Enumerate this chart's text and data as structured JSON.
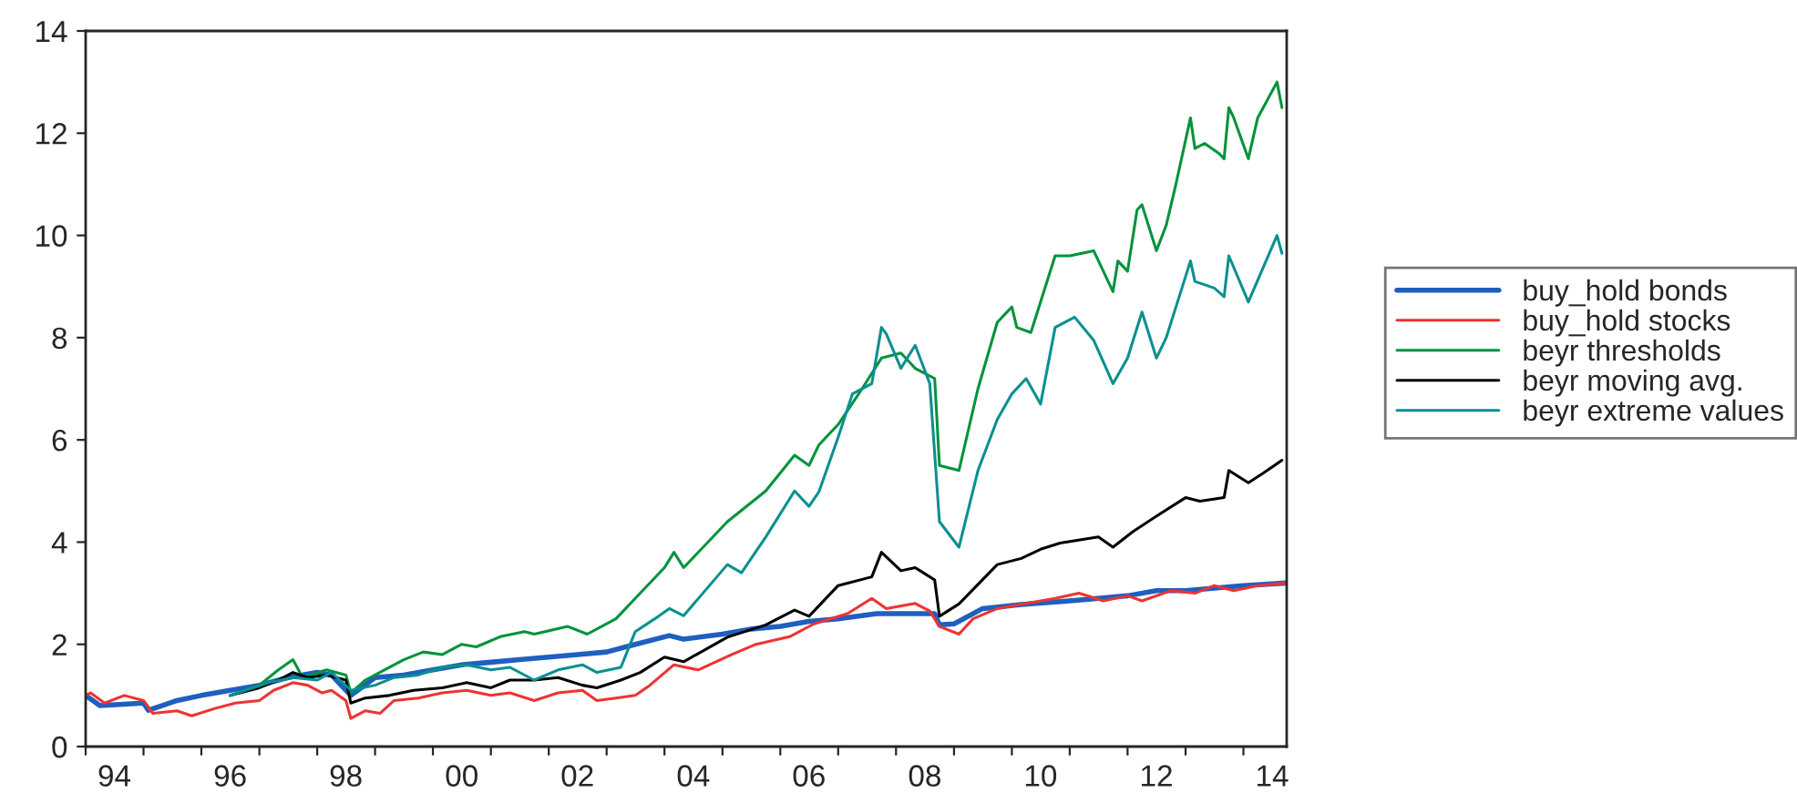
{
  "chart_data": {
    "type": "line",
    "xlim": [
      "1994-01",
      "2014-10"
    ],
    "ylim": [
      0,
      14
    ],
    "yticks": [
      0,
      2,
      4,
      6,
      8,
      10,
      12,
      14
    ],
    "xticks": [
      {
        "value": "1994",
        "label": null
      },
      {
        "value": "1995",
        "label": null
      },
      {
        "value": "1996",
        "label": null
      },
      {
        "value": "1997",
        "label": null
      },
      {
        "value": "1998",
        "label": null
      },
      {
        "value": "1999",
        "label": null
      },
      {
        "value": "2000",
        "label": null
      },
      {
        "value": "2001",
        "label": null
      },
      {
        "value": "2002",
        "label": null
      },
      {
        "value": "2003",
        "label": null
      },
      {
        "value": "2004",
        "label": null
      },
      {
        "value": "2005",
        "label": null
      },
      {
        "value": "2006",
        "label": null
      },
      {
        "value": "2007",
        "label": null
      },
      {
        "value": "2008",
        "label": null
      },
      {
        "value": "2009",
        "label": null
      },
      {
        "value": "2010",
        "label": null
      },
      {
        "value": "2011",
        "label": null
      },
      {
        "value": "2012",
        "label": null
      },
      {
        "value": "2013",
        "label": null
      },
      {
        "value": "2014",
        "label": null
      },
      {
        "value": "1994-07",
        "label": "94"
      },
      {
        "value": "1996-07",
        "label": "96"
      },
      {
        "value": "1998-07",
        "label": "98"
      },
      {
        "value": "2000-07",
        "label": "00"
      },
      {
        "value": "2002-07",
        "label": "02"
      },
      {
        "value": "2004-07",
        "label": "04"
      },
      {
        "value": "2006-07",
        "label": "06"
      },
      {
        "value": "2008-07",
        "label": "08"
      },
      {
        "value": "2010-07",
        "label": "10"
      },
      {
        "value": "2012-07",
        "label": "12"
      },
      {
        "value": "2014-07",
        "label": "14"
      }
    ],
    "grid": false,
    "legend": "right",
    "line_style": "solid",
    "marker": "none",
    "series": [
      {
        "name": "buy_hold bonds",
        "color": "#1f5fbf",
        "x": [
          "1994-01",
          "1994-04",
          "1995-01",
          "1995-02",
          "1995-08",
          "1996-01",
          "1996-07",
          "1997-01",
          "1997-07",
          "1998-01",
          "1998-04",
          "1998-08",
          "1999-01",
          "1999-07",
          "2000-01",
          "2000-07",
          "2001-01",
          "2001-07",
          "2002-01",
          "2002-07",
          "2003-01",
          "2003-07",
          "2004-02",
          "2004-05",
          "2005-01",
          "2005-07",
          "2006-01",
          "2006-07",
          "2007-01",
          "2007-09",
          "2008-09",
          "2008-10",
          "2009-01",
          "2009-07",
          "2010-03",
          "2011-01",
          "2012-01",
          "2012-07",
          "2013-01",
          "2014-01",
          "2014-10"
        ],
        "values": [
          1.0,
          0.8,
          0.85,
          0.71,
          0.9,
          1.0,
          1.1,
          1.2,
          1.35,
          1.45,
          1.4,
          1.0,
          1.35,
          1.4,
          1.5,
          1.6,
          1.65,
          1.7,
          1.75,
          1.8,
          1.85,
          2.0,
          2.17,
          2.1,
          2.2,
          2.3,
          2.35,
          2.45,
          2.5,
          2.6,
          2.6,
          2.38,
          2.4,
          2.7,
          2.78,
          2.85,
          2.95,
          3.05,
          3.05,
          3.15,
          3.2
        ]
      },
      {
        "name": "buy_hold stocks",
        "color": "#ee3333",
        "x": [
          "1994-01",
          "1994-02",
          "1994-05",
          "1994-09",
          "1995-01",
          "1995-03",
          "1995-08",
          "1995-11",
          "1996-04",
          "1996-08",
          "1997-01",
          "1997-04",
          "1997-08",
          "1997-11",
          "1998-02",
          "1998-04",
          "1998-07",
          "1998-08",
          "1998-11",
          "1999-02",
          "1999-05",
          "1999-10",
          "2000-03",
          "2000-08",
          "2001-01",
          "2001-05",
          "2001-10",
          "2002-03",
          "2002-08",
          "2002-11",
          "2003-03",
          "2003-07",
          "2003-10",
          "2004-03",
          "2004-08",
          "2005-03",
          "2005-08",
          "2006-03",
          "2006-08",
          "2007-03",
          "2007-08",
          "2007-11",
          "2008-05",
          "2008-08",
          "2008-10",
          "2009-02",
          "2009-05",
          "2009-10",
          "2010-04",
          "2010-10",
          "2011-03",
          "2011-08",
          "2012-01",
          "2012-04",
          "2012-10",
          "2013-03",
          "2013-07",
          "2013-11",
          "2014-04",
          "2014-10"
        ],
        "values": [
          1.0,
          1.05,
          0.85,
          1.0,
          0.9,
          0.65,
          0.7,
          0.6,
          0.75,
          0.85,
          0.9,
          1.1,
          1.25,
          1.2,
          1.05,
          1.1,
          0.9,
          0.55,
          0.7,
          0.65,
          0.9,
          0.95,
          1.05,
          1.1,
          1.0,
          1.05,
          0.9,
          1.05,
          1.1,
          0.9,
          0.95,
          1.0,
          1.2,
          1.6,
          1.5,
          1.8,
          2.0,
          2.15,
          2.4,
          2.6,
          2.9,
          2.7,
          2.8,
          2.65,
          2.35,
          2.2,
          2.5,
          2.7,
          2.8,
          2.9,
          3.0,
          2.85,
          2.95,
          2.85,
          3.05,
          3.0,
          3.15,
          3.05,
          3.15,
          3.2
        ]
      },
      {
        "name": "beyr thresholds",
        "color": "#00933c",
        "x": [
          "1996-07",
          "1997-01",
          "1997-05",
          "1997-08",
          "1997-10",
          "1998-03",
          "1998-07",
          "1998-08",
          "1998-11",
          "1999-03",
          "1999-07",
          "1999-11",
          "2000-03",
          "2000-07",
          "2000-10",
          "2001-03",
          "2001-08",
          "2001-10",
          "2002-05",
          "2002-09",
          "2003-03",
          "2003-08",
          "2004-01",
          "2004-03",
          "2004-05",
          "2005-02",
          "2005-10",
          "2006-04",
          "2006-07",
          "2006-09",
          "2007-01",
          "2007-06",
          "2007-10",
          "2008-02",
          "2008-05",
          "2008-09",
          "2008-10",
          "2009-02",
          "2009-06",
          "2009-10",
          "2010-01",
          "2010-02",
          "2010-05",
          "2010-10",
          "2011-01",
          "2011-06",
          "2011-10",
          "2011-11",
          "2012-01",
          "2012-03",
          "2012-04",
          "2012-07",
          "2012-09",
          "2012-11",
          "2013-02",
          "2013-03",
          "2013-05",
          "2013-08",
          "2013-09",
          "2013-10",
          "2013-11",
          "2014-02",
          "2014-04",
          "2014-08",
          "2014-09"
        ],
        "values": [
          1.0,
          1.2,
          1.5,
          1.7,
          1.35,
          1.5,
          1.4,
          1.05,
          1.3,
          1.5,
          1.7,
          1.85,
          1.8,
          2.0,
          1.95,
          2.15,
          2.25,
          2.2,
          2.35,
          2.2,
          2.5,
          3.0,
          3.5,
          3.8,
          3.5,
          4.4,
          5.0,
          5.7,
          5.5,
          5.9,
          6.3,
          7.0,
          7.6,
          7.7,
          7.4,
          7.2,
          5.5,
          5.4,
          7.0,
          8.3,
          8.6,
          8.2,
          8.1,
          9.6,
          9.6,
          9.7,
          8.9,
          9.5,
          9.3,
          10.5,
          10.6,
          9.7,
          10.2,
          11.0,
          12.3,
          11.7,
          11.8,
          11.6,
          11.5,
          12.5,
          12.3,
          11.5,
          12.3,
          13.0,
          12.5
        ]
      },
      {
        "name": "beyr moving avg.",
        "color": "#000000",
        "x": [
          "1996-07",
          "1997-01",
          "1997-05",
          "1997-08",
          "1997-11",
          "1998-03",
          "1998-07",
          "1998-08",
          "1998-11",
          "1999-04",
          "1999-09",
          "2000-03",
          "2000-08",
          "2001-01",
          "2001-05",
          "2001-10",
          "2002-03",
          "2002-08",
          "2002-11",
          "2003-04",
          "2003-08",
          "2004-01",
          "2004-05",
          "2005-02",
          "2005-10",
          "2006-04",
          "2006-07",
          "2007-01",
          "2007-08",
          "2007-10",
          "2008-02",
          "2008-05",
          "2008-09",
          "2008-10",
          "2009-02",
          "2009-10",
          "2010-03",
          "2010-07",
          "2010-11",
          "2011-07",
          "2011-10",
          "2012-02",
          "2012-08",
          "2013-01",
          "2013-04",
          "2013-09",
          "2013-10",
          "2014-02",
          "2014-05",
          "2014-09"
        ],
        "values": [
          1.0,
          1.15,
          1.3,
          1.45,
          1.35,
          1.4,
          1.3,
          0.85,
          0.95,
          1.0,
          1.1,
          1.15,
          1.25,
          1.15,
          1.3,
          1.3,
          1.35,
          1.2,
          1.15,
          1.3,
          1.45,
          1.75,
          1.66,
          2.14,
          2.38,
          2.67,
          2.55,
          3.15,
          3.32,
          3.8,
          3.44,
          3.5,
          3.26,
          2.55,
          2.79,
          3.56,
          3.68,
          3.86,
          3.98,
          4.1,
          3.9,
          4.2,
          4.57,
          4.87,
          4.8,
          4.87,
          5.4,
          5.16,
          5.34,
          5.6
        ]
      },
      {
        "name": "beyr extreme values",
        "color": "#0a9090",
        "x": [
          "1996-07",
          "1997-03",
          "1997-08",
          "1998-01",
          "1998-04",
          "1998-08",
          "1999-01",
          "1999-05",
          "1999-10",
          "2000-03",
          "2000-08",
          "2001-01",
          "2001-05",
          "2001-10",
          "2002-03",
          "2002-08",
          "2002-11",
          "2003-04",
          "2003-07",
          "2003-11",
          "2004-02",
          "2004-05",
          "2005-02",
          "2005-05",
          "2005-10",
          "2006-04",
          "2006-07",
          "2006-09",
          "2007-01",
          "2007-04",
          "2007-08",
          "2007-10",
          "2007-11",
          "2008-02",
          "2008-05",
          "2008-08",
          "2008-10",
          "2009-02",
          "2009-06",
          "2009-10",
          "2010-01",
          "2010-04",
          "2010-07",
          "2010-10",
          "2011-02",
          "2011-06",
          "2011-10",
          "2012-01",
          "2012-04",
          "2012-07",
          "2012-09",
          "2013-02",
          "2013-03",
          "2013-07",
          "2013-09",
          "2013-10",
          "2014-02",
          "2014-08",
          "2014-09"
        ],
        "values": [
          1.0,
          1.25,
          1.35,
          1.3,
          1.45,
          1.1,
          1.2,
          1.35,
          1.4,
          1.55,
          1.6,
          1.5,
          1.55,
          1.3,
          1.5,
          1.6,
          1.45,
          1.55,
          2.25,
          2.5,
          2.7,
          2.56,
          3.56,
          3.4,
          4.1,
          5.0,
          4.7,
          4.98,
          6.05,
          6.9,
          7.1,
          8.2,
          8.07,
          7.4,
          7.85,
          7.1,
          4.4,
          3.9,
          5.4,
          6.4,
          6.9,
          7.2,
          6.7,
          8.2,
          8.4,
          7.95,
          7.1,
          7.6,
          8.5,
          7.6,
          8.0,
          9.5,
          9.1,
          8.97,
          8.8,
          9.6,
          8.7,
          10.0,
          9.65
        ]
      }
    ]
  }
}
